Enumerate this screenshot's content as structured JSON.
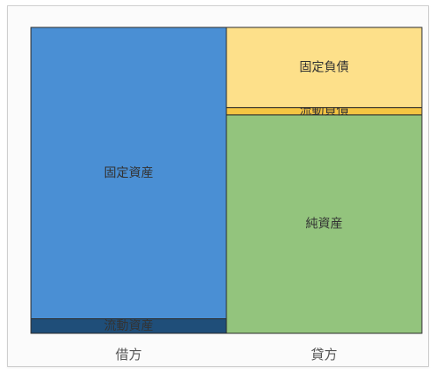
{
  "chart_data": {
    "type": "bar",
    "stacked": true,
    "categories": [
      "借方",
      "貸方"
    ],
    "series": [
      {
        "name": "流動資産",
        "category": "借方",
        "value": 5,
        "color": "#1f4e79"
      },
      {
        "name": "固定資産",
        "category": "借方",
        "value": 100,
        "color": "#4a8fd4"
      },
      {
        "name": "純資産",
        "category": "貸方",
        "value": 75,
        "color": "#93c47d"
      },
      {
        "name": "流動負債",
        "category": "貸方",
        "value": 2.5,
        "color": "#f5c542"
      },
      {
        "name": "固定負債",
        "category": "貸方",
        "value": 27.5,
        "color": "#fde08a"
      }
    ],
    "ylim": [
      0,
      105
    ],
    "title": "",
    "xlabel": "",
    "ylabel": "",
    "legend": false,
    "grid": false
  }
}
